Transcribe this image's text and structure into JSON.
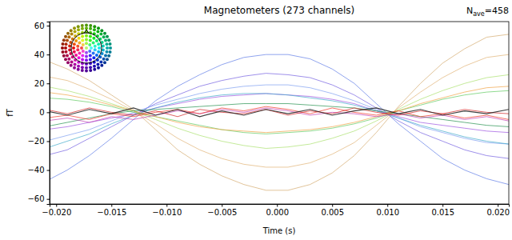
{
  "chart_data": {
    "type": "line",
    "title": "Magnetometers (273 channels)",
    "annotation": {
      "base": "N",
      "subscript": "ave",
      "text": "=458"
    },
    "x_label": "Time (s)",
    "y_label": "fT",
    "x": [
      -0.021,
      -0.019,
      -0.017,
      -0.015,
      -0.013,
      -0.011,
      -0.009,
      -0.007,
      -0.005,
      -0.003,
      -0.001,
      0.001,
      0.003,
      0.005,
      0.007,
      0.009,
      0.011,
      0.013,
      0.015,
      0.017,
      0.019,
      0.021
    ],
    "xlim": [
      -0.0206,
      0.021
    ],
    "ylim": [
      -63.5,
      62.8
    ],
    "xticks": [
      {
        "value": -0.02,
        "label": "−0.020"
      },
      {
        "value": -0.015,
        "label": "−0.015"
      },
      {
        "value": -0.01,
        "label": "−0.010"
      },
      {
        "value": -0.005,
        "label": "−0.005"
      },
      {
        "value": 0,
        "label": "0.000"
      },
      {
        "value": 0.005,
        "label": "0.005"
      },
      {
        "value": 0.01,
        "label": "0.010"
      },
      {
        "value": 0.015,
        "label": "0.015"
      },
      {
        "value": 0.02,
        "label": "0.020"
      }
    ],
    "yticks": [
      {
        "value": -60,
        "label": "−60"
      },
      {
        "value": -40,
        "label": "−40"
      },
      {
        "value": -20,
        "label": "−20"
      },
      0,
      20,
      40,
      60
    ],
    "grid": false,
    "series": [
      {
        "color": "#5a78e6",
        "values": [
          -48,
          -40,
          -30,
          -18,
          -5,
          8,
          18,
          26,
          33,
          38,
          40,
          40,
          37,
          30,
          20,
          6,
          -8,
          -20,
          -32,
          -40,
          -46,
          -50
        ]
      },
      {
        "color": "#6f5ae0",
        "values": [
          -30,
          -26,
          -18,
          -10,
          -2,
          6,
          12,
          18,
          22,
          25,
          27,
          26,
          24,
          19,
          12,
          3,
          -6,
          -14,
          -20,
          -26,
          -30,
          -32
        ]
      },
      {
        "color": "#7a9cf0",
        "values": [
          -20,
          -16,
          -12,
          -6,
          0,
          5,
          9,
          13,
          16,
          18,
          19,
          19,
          17,
          13,
          8,
          2,
          -4,
          -10,
          -14,
          -18,
          -21,
          -22
        ]
      },
      {
        "color": "#9a4ee0",
        "values": [
          -12,
          -10,
          -7,
          -4,
          -1,
          3,
          6,
          9,
          11,
          12,
          13,
          12,
          11,
          9,
          6,
          1,
          -3,
          -7,
          -9,
          -11,
          -13,
          -14
        ]
      },
      {
        "color": "#3aa8c8",
        "values": [
          -25,
          -20,
          -15,
          -8,
          -2,
          3,
          7,
          10,
          12,
          13,
          13,
          12,
          10,
          8,
          5,
          1,
          -4,
          -9,
          -13,
          -17,
          -20,
          -22
        ]
      },
      {
        "color": "#d2a86a",
        "values": [
          36,
          30,
          22,
          12,
          2,
          -12,
          -26,
          -36,
          -44,
          -50,
          -54,
          -54,
          -50,
          -42,
          -30,
          -14,
          4,
          20,
          34,
          44,
          52,
          54
        ]
      },
      {
        "color": "#e0b070",
        "values": [
          25,
          22,
          16,
          9,
          1,
          -8,
          -18,
          -26,
          -32,
          -36,
          -38,
          -38,
          -35,
          -29,
          -21,
          -9,
          3,
          14,
          24,
          32,
          38,
          40
        ]
      },
      {
        "color": "#a8e06a",
        "values": [
          18,
          15,
          11,
          6,
          1,
          -5,
          -11,
          -16,
          -20,
          -23,
          -25,
          -24,
          -22,
          -18,
          -13,
          -6,
          2,
          9,
          15,
          20,
          24,
          26
        ]
      },
      {
        "color": "#5ac85a",
        "values": [
          10,
          9,
          7,
          4,
          0,
          -3,
          -6,
          -9,
          -12,
          -14,
          -15,
          -14,
          -13,
          -11,
          -8,
          -4,
          1,
          5,
          9,
          12,
          14,
          15
        ]
      },
      {
        "color": "#f0a040",
        "values": [
          14,
          12,
          9,
          5,
          1,
          -3,
          -7,
          -10,
          -12,
          -13,
          -14,
          -13,
          -12,
          -10,
          -7,
          -3,
          1,
          6,
          10,
          14,
          17,
          18
        ]
      },
      {
        "color": "#1f8f4a",
        "values": [
          -10,
          -7,
          -4,
          -1,
          1,
          2,
          3,
          4,
          5,
          6,
          6,
          6,
          5,
          4,
          3,
          1,
          -1,
          -3,
          -5,
          -7,
          -9,
          -10
        ]
      },
      {
        "color": "#c03ab0",
        "values": [
          -6,
          -4,
          -7,
          -3,
          -5,
          -2,
          1,
          -1,
          2,
          0,
          3,
          1,
          -2,
          0,
          -1,
          -3,
          -1,
          -4,
          -2,
          -5,
          -3,
          -6
        ]
      },
      {
        "color": "#f03020",
        "values": [
          -4,
          -2,
          -5,
          -1,
          -3,
          0,
          2,
          -1,
          3,
          1,
          4,
          2,
          -1,
          3,
          0,
          -2,
          1,
          -3,
          -1,
          -4,
          -2,
          -5
        ]
      },
      {
        "color": "#d01a1a",
        "values": [
          2,
          -1,
          3,
          0,
          -2,
          1,
          -3,
          2,
          0,
          -1,
          2,
          -2,
          1,
          -1,
          3,
          0,
          -2,
          1,
          -1,
          2,
          0,
          -1
        ]
      },
      {
        "color": "#202020",
        "values": [
          1,
          -2,
          2,
          -1,
          3,
          -2,
          2,
          -3,
          1,
          -2,
          2,
          -1,
          2,
          -2,
          1,
          3,
          -1,
          2,
          -2,
          1,
          -1,
          2
        ]
      }
    ]
  }
}
